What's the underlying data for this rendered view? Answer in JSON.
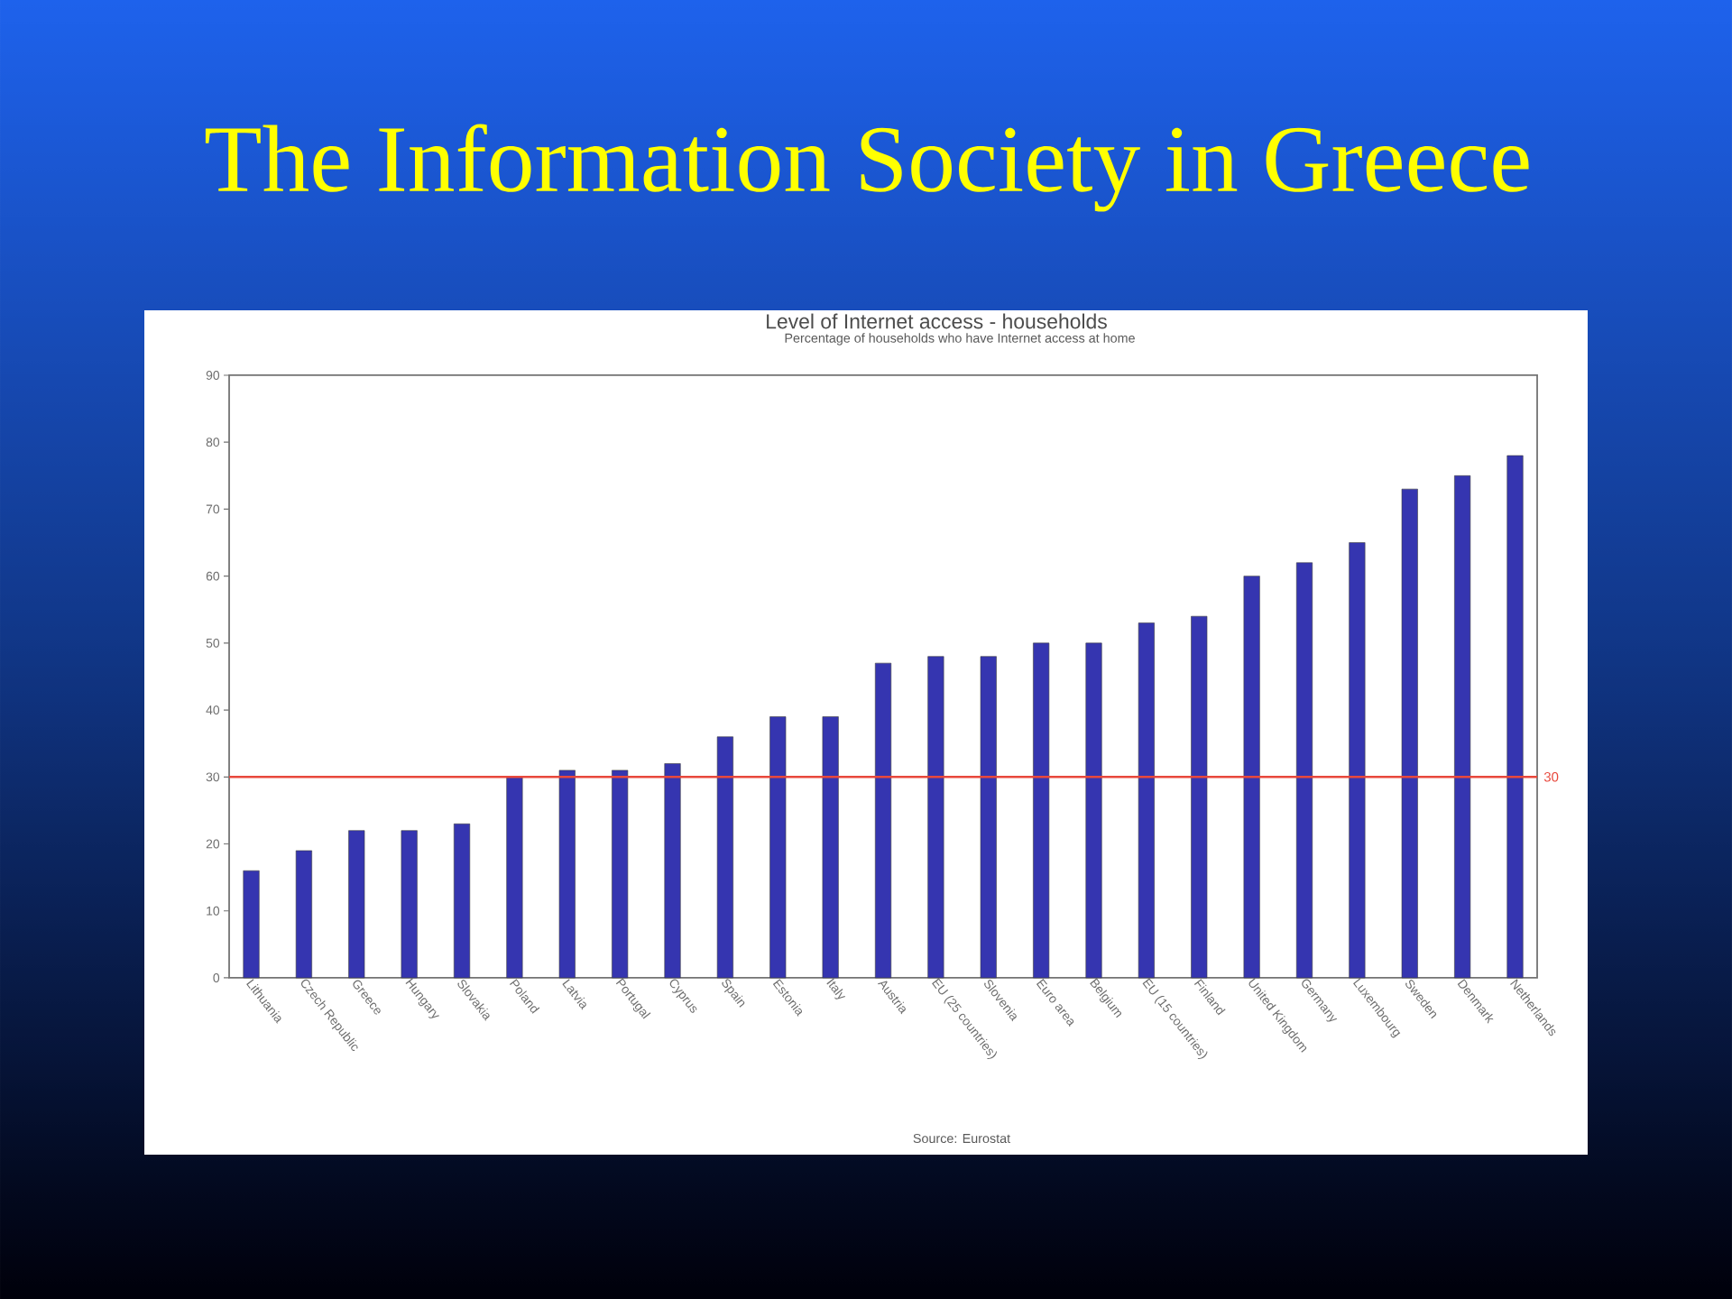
{
  "chart_data": {
    "type": "bar",
    "title": "The Information Society in Greece",
    "subtitle": "Level of Internet access - households",
    "annotations": [
      "Percentage of households who have Internet access at home",
      "Source: Eurostat"
    ],
    "categories": [
      "Lithuania",
      "Czech Republic",
      "Greece",
      "Hungary",
      "Slovakia",
      "Poland",
      "Latvia",
      "Portugal",
      "Cyprus",
      "Spain",
      "Estonia",
      "Italy",
      "Austria",
      "EU (25 countries)",
      "Slovenia",
      "Euro area",
      "Belgium",
      "EU (15 countries)",
      "Finland",
      "United Kingdom",
      "Germany",
      "Luxembourg",
      "Sweden",
      "Denmark",
      "Netherlands"
    ],
    "values": [
      16,
      19,
      22,
      22,
      23,
      30,
      31,
      31,
      32,
      36,
      39,
      39,
      47,
      48,
      48,
      50,
      50,
      53,
      54,
      60,
      62,
      65,
      73,
      75,
      78
    ],
    "color": "#3535b0",
    "ylim": [
      0,
      90
    ],
    "yticks": [
      0,
      10,
      20,
      30,
      40,
      50,
      60,
      70,
      80,
      90
    ],
    "ref_lines": [
      {
        "axis": "y",
        "value": 30,
        "label": "30",
        "color": "#e8483c"
      }
    ]
  }
}
